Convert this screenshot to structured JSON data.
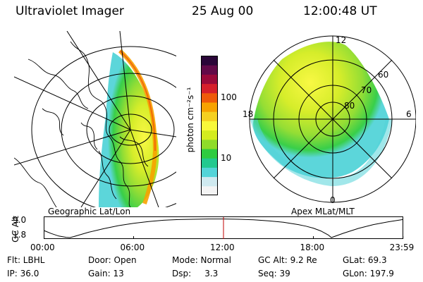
{
  "header": {
    "instrument": "Ultraviolet Imager",
    "date": "25 Aug 00",
    "time": "12:00:48 UT"
  },
  "left_panel": {
    "caption": "Geographic Lat/Lon"
  },
  "right_panel": {
    "caption": "Apex MLat/MLT",
    "mlt_labels": {
      "top": "12",
      "right": "6",
      "bottom": "0",
      "left": "18"
    },
    "lat_labels": [
      "60",
      "70",
      "80"
    ]
  },
  "colorbar": {
    "title": "photon cm⁻²s⁻¹",
    "ticks": [
      {
        "value": 100,
        "label": "100"
      },
      {
        "value": 10,
        "label": "10"
      }
    ],
    "range": [
      2.5,
      500
    ],
    "scale": "log",
    "colors": [
      "#f4f4f4",
      "#cfe9ef",
      "#53d4d8",
      "#22c98f",
      "#2ecc40",
      "#8fdc2a",
      "#d4ec1f",
      "#f8f83a",
      "#f5d020",
      "#f7a200",
      "#ef5a0a",
      "#d61f2b",
      "#9a0a3a",
      "#620a48",
      "#2a0638"
    ]
  },
  "chart_data": {
    "type": "line",
    "title": "",
    "ylabel": "GC Alt",
    "xlabel": "",
    "x_ticks": [
      "00:00",
      "06:00",
      "12:00",
      "18:00",
      "23:59"
    ],
    "y_ticks": [
      "9.0",
      "1.8"
    ],
    "ylim": [
      1.8,
      9.0
    ],
    "xlim_hours": [
      0,
      24
    ],
    "series": [
      {
        "x": [
          0.0,
          0.5,
          1.0,
          1.5,
          1.75,
          2.0,
          3.0,
          4.0,
          5.0,
          6.0,
          7.0,
          8.0,
          9.0,
          10.0,
          11.0,
          12.0,
          13.0,
          14.0,
          15.0,
          16.0,
          17.0,
          17.5,
          18.0,
          18.5,
          19.0,
          19.2,
          20.0,
          21.0,
          22.0,
          23.0,
          23.98
        ],
        "y": [
          4.6,
          3.4,
          2.4,
          1.9,
          1.8,
          2.2,
          3.9,
          5.3,
          6.5,
          7.4,
          8.1,
          8.6,
          8.9,
          9.0,
          9.1,
          9.1,
          9.0,
          8.8,
          8.4,
          7.8,
          6.9,
          6.3,
          5.5,
          4.4,
          2.8,
          1.8,
          3.5,
          5.4,
          6.9,
          8.0,
          8.9
        ]
      }
    ],
    "marker_hour": 12.0,
    "grid": false
  },
  "footer": {
    "row1": [
      "Flt: LBHL",
      "Door: Open",
      "Mode: Normal",
      "GC Alt: 9.2 Re",
      "GLat: 69.3"
    ],
    "row2": [
      "IP: 36.0",
      "Gain: 13",
      "Dsp:     3.3",
      "Seq: 39",
      "GLon: 197.9"
    ]
  }
}
